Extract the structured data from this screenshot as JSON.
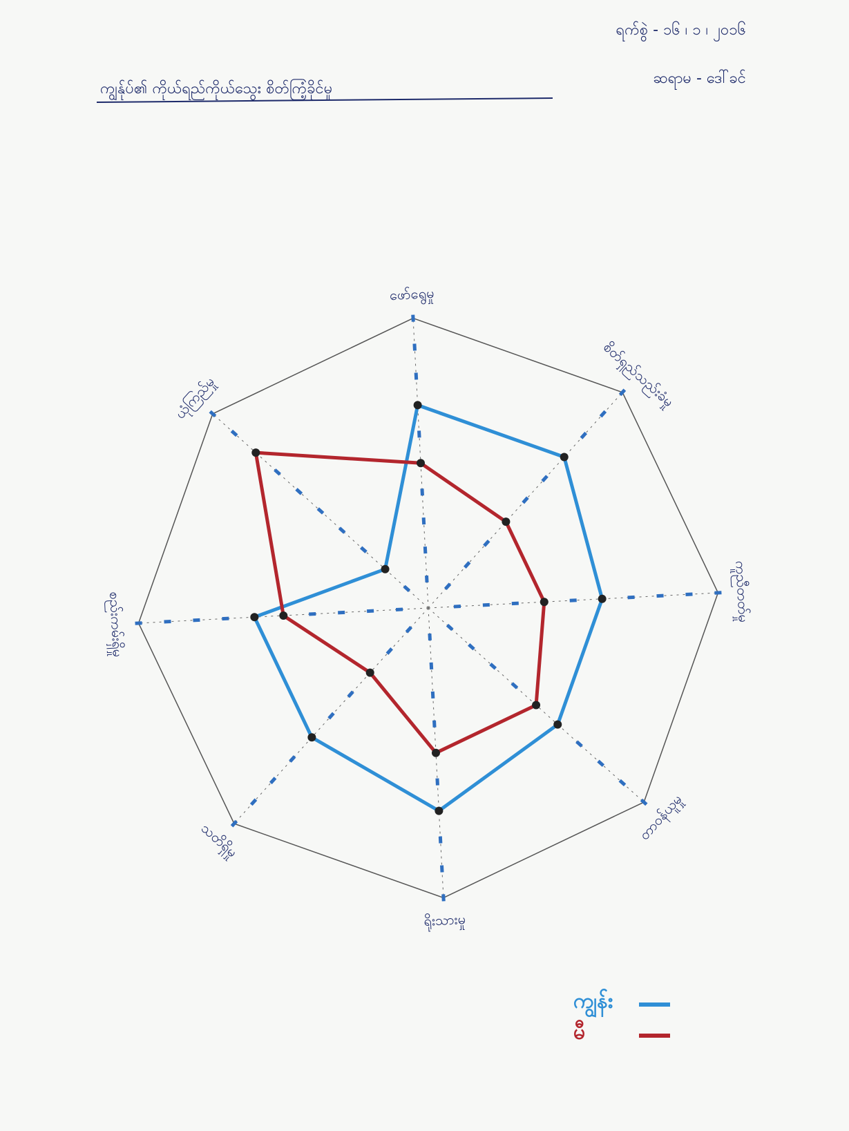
{
  "header": {
    "date": "ရက်စွဲ - ၁၆ ၊ ၁ ၊ ၂၀၁၆",
    "teacher": "ဆရာမ - ဒေါ်ခင်",
    "title": "ကျွန်ုပ်၏ ကိုယ်ရည်ကိုယ်သွေး စိတ်ကြံ့ခိုင်မှု"
  },
  "chart_data": {
    "type": "radar",
    "categories": [
      "ဖော်ရွေမှု",
      "စိတ်ရှည်သည်းခံမှု",
      "ကူညီတတ်မှု",
      "တာဝန်ယူမှု",
      "ရိုးသားမှု",
      "သတိရှိမှု",
      "စည်းကမ်းရှိမှု",
      "ယုံကြည်မှု"
    ],
    "series": [
      {
        "name": "ကျွန်း",
        "color": "#2f8fd6",
        "values": [
          7,
          7,
          6,
          6,
          7,
          6,
          6,
          2
        ]
      },
      {
        "name": "မီ",
        "color": "#b3262d",
        "values": [
          5,
          4,
          4,
          5,
          5,
          3,
          5,
          8
        ]
      }
    ],
    "rlim": [
      0,
      10
    ],
    "rticks": [
      1,
      2,
      3,
      4,
      5,
      6,
      7,
      8,
      9,
      10
    ]
  }
}
